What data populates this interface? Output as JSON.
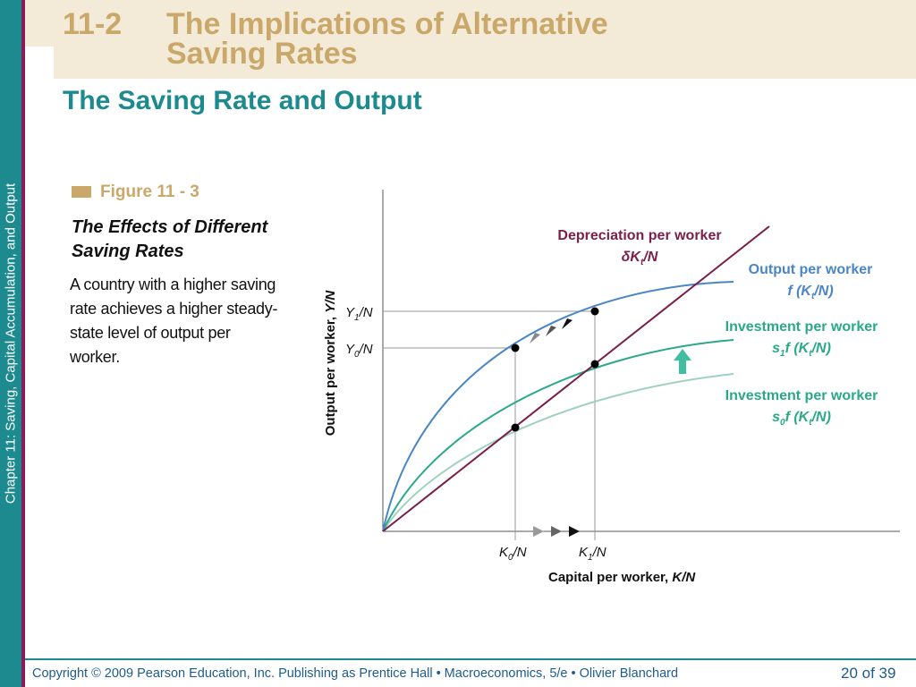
{
  "sidebar": {
    "text": "Chapter 11:  Saving, Capital Accumulation, and Output"
  },
  "slide": {
    "section_number": "11-2",
    "title_line1": "The Implications of Alternative",
    "title_line2": "Saving Rates",
    "subtitle": "The Saving Rate and Output"
  },
  "figure": {
    "label": "Figure 11 - 3",
    "title": "The Effects of Different Saving Rates",
    "description": "A country with a higher saving rate achieves a higher steady- state level of output per worker."
  },
  "diagram": {
    "y_axis_label": "Output per worker,",
    "y_axis_symbol": "Y/N",
    "x_axis_label": "Capital per worker,",
    "x_axis_symbol": "K/N",
    "y1_label": "Y",
    "y1_sub": "1",
    "y0_label": "Y",
    "y0_sub": "0",
    "k0_label": "K",
    "k0_sub": "0",
    "k1_label": "K",
    "k1_sub": "1",
    "per_n": "/N",
    "curves": {
      "depreciation": {
        "title": "Depreciation per worker",
        "formula": "δK",
        "formula_sub": "t",
        "formula_end": "/N",
        "color": "#7a1f4a"
      },
      "output": {
        "title": "Output per worker",
        "formula": "f (K",
        "formula_sub": "t",
        "formula_end": "/N)",
        "color": "#4a86c5"
      },
      "investment_high": {
        "title": "Investment per worker",
        "formula_s": "s",
        "formula_s_sub": "1",
        "formula": "f (K",
        "formula_sub": "t",
        "formula_end": "/N)",
        "color": "#2aa88a"
      },
      "investment_low": {
        "title": "Investment per worker",
        "formula_s": "s",
        "formula_s_sub": "0",
        "formula": "f (K",
        "formula_sub": "t",
        "formula_end": "/N)",
        "color": "#7fc4a8"
      }
    }
  },
  "footer": {
    "copyright": "Copyright © 2009 Pearson Education, Inc. Publishing as Prentice Hall  •  Macroeconomics, 5/e  •  Olivier Blanchard",
    "page": "20 of 39"
  }
}
